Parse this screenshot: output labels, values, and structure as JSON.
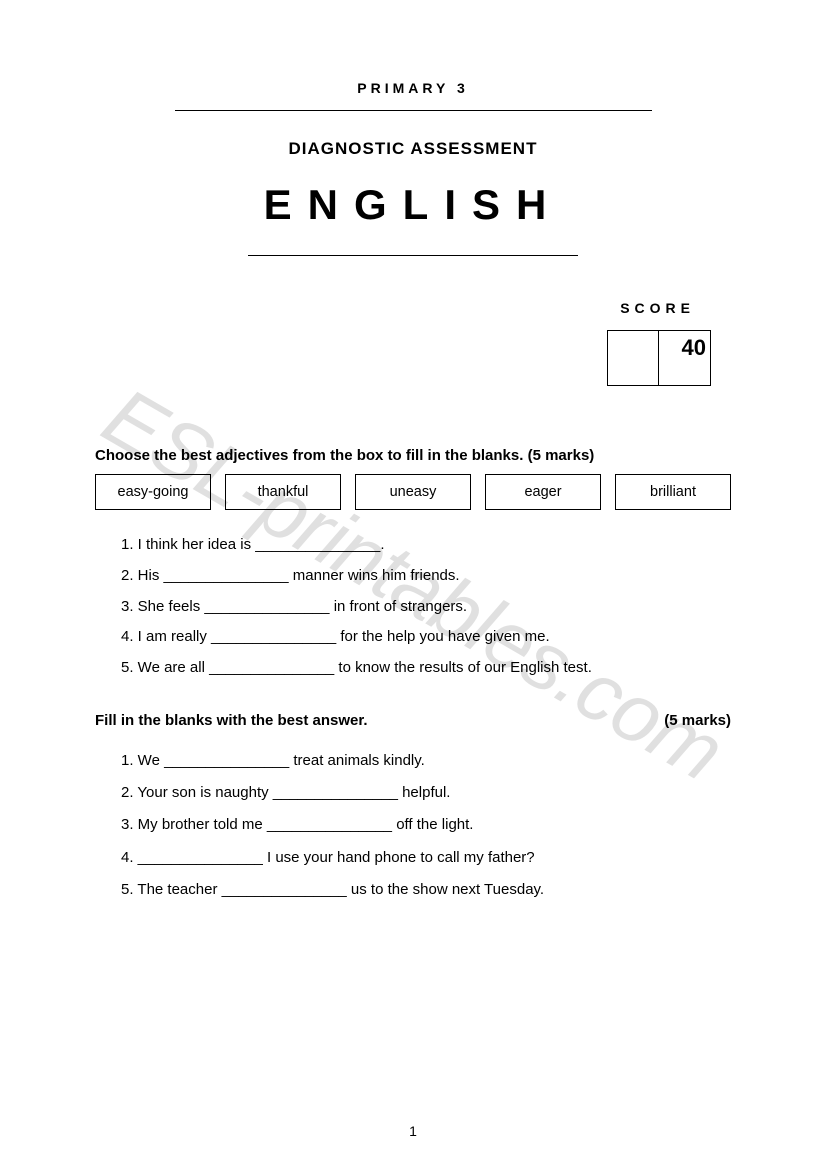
{
  "watermark": "ESL-printables.com",
  "header": {
    "level": "PRIMARY 3",
    "assessment_type": "DIAGNOSTIC ASSESSMENT",
    "subject": "ENGLISH"
  },
  "score": {
    "label": "SCORE",
    "max": "40"
  },
  "section1": {
    "instruction": "Choose the best adjectives from the box to fill in the blanks. (5 marks)",
    "words": [
      "easy-going",
      "thankful",
      "uneasy",
      "eager",
      "brilliant"
    ],
    "questions": [
      "1. I think her idea is _______________.",
      "2. His _______________ manner wins him friends.",
      "3. She feels _______________ in front of strangers.",
      "4. I am really _______________ for the help you have given me.",
      "5. We are all _______________ to know the results of our English test."
    ]
  },
  "section2": {
    "instruction": "Fill in the blanks with the best answer.",
    "marks": "(5 marks)",
    "questions": [
      "1.  We _______________ treat animals kindly.",
      "2.  Your son is naughty _______________ helpful.",
      "3.  My brother told me _______________ off the light.",
      "4.  _______________ I use your hand phone to call my father?",
      "5.  The teacher _______________ us to the show next Tuesday."
    ]
  },
  "page_number": "1"
}
